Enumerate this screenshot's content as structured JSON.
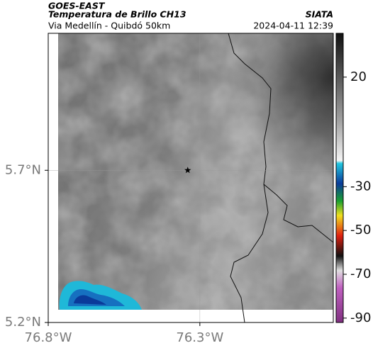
{
  "header": {
    "satellite": "GOES-EAST",
    "product": "Temperatura de Brillo CH13",
    "region": "Via Medellín - Quibdó 50km",
    "source": "SIATA",
    "timestamp": "2024-04-11 12:39"
  },
  "map": {
    "xlim": [
      -76.8,
      -75.86
    ],
    "ylim": [
      5.2,
      6.15
    ],
    "xticks": [
      {
        "value": -76.8,
        "label": "76.8°W"
      },
      {
        "value": -76.3,
        "label": "76.3°W"
      }
    ],
    "yticks": [
      {
        "value": 5.7,
        "label": "5.7°N"
      },
      {
        "value": 5.2,
        "label": "5.2°N"
      }
    ],
    "marker": {
      "lon": -76.34,
      "lat": 5.7
    }
  },
  "colorbar": {
    "lim": [
      -92,
      40
    ],
    "ticks": [
      20,
      -30,
      -50,
      -70,
      -90
    ]
  }
}
